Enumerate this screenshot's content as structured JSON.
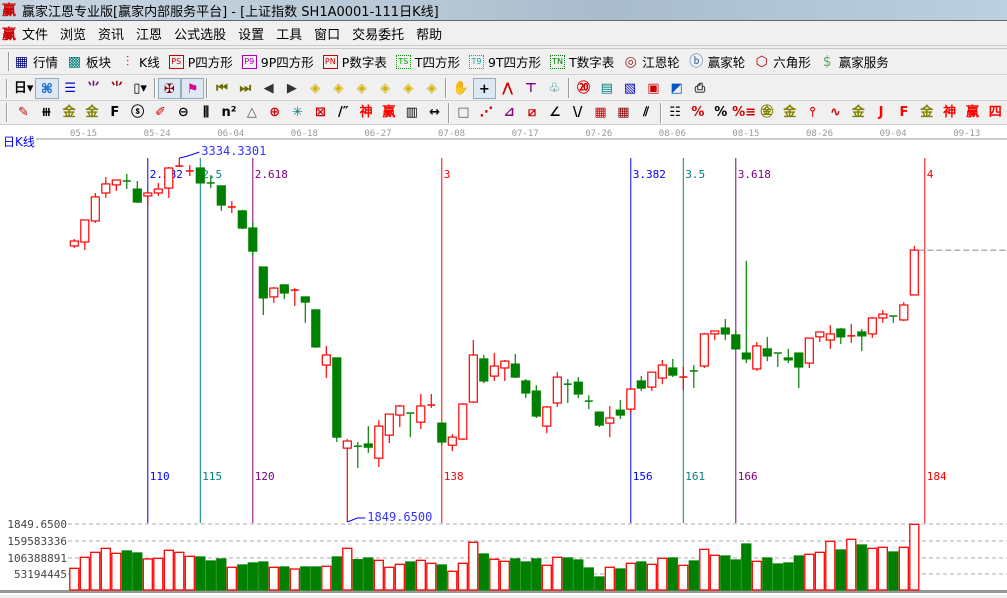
{
  "window": {
    "title": "赢家江恩专业版[赢家内部服务平台] - [上证指数  SH1A0001-111日K线]",
    "logo": "赢"
  },
  "menu": {
    "logo": "赢",
    "items": [
      "文件",
      "浏览",
      "资讯",
      "江恩",
      "公式选股",
      "设置",
      "工具",
      "窗口",
      "交易委托",
      "帮助"
    ]
  },
  "toolbar_main": [
    {
      "label": "行情",
      "icon": "quote-table-icon",
      "glyph": "▦",
      "color": "#000080"
    },
    {
      "label": "板块",
      "icon": "sector-blocks-icon",
      "glyph": "▩",
      "color": "#008080"
    },
    {
      "label": "K线",
      "icon": "candlestick-icon",
      "glyph": "⫶",
      "color": "#ff0000"
    },
    {
      "label": "P四方形",
      "icon": "ps-square-icon",
      "glyph": "PS",
      "color": "#cc0000"
    },
    {
      "label": "9P四方形",
      "icon": "p9-square-icon",
      "glyph": "P9",
      "color": "#aa00aa"
    },
    {
      "label": "P数字表",
      "icon": "pn-table-icon",
      "glyph": "PN",
      "color": "#cc0000"
    },
    {
      "label": "T四方形",
      "icon": "ts-square-icon",
      "glyph": "TS",
      "color": "#00a000"
    },
    {
      "label": "9T四方形",
      "icon": "t9-square-icon",
      "glyph": "T9",
      "color": "#00aaaa"
    },
    {
      "label": "T数字表",
      "icon": "tn-table-icon",
      "glyph": "TN",
      "color": "#008000"
    },
    {
      "label": "江恩轮",
      "icon": "gann-wheel-icon",
      "glyph": "◎",
      "color": "#8b1a1a"
    },
    {
      "label": "赢家轮",
      "icon": "big-wheel-icon",
      "glyph": "ⓑ",
      "color": "#336699"
    },
    {
      "label": "六角形",
      "icon": "hexagon-icon",
      "glyph": "⬡",
      "color": "#aa0000"
    },
    {
      "label": "赢家服务",
      "icon": "dollar-service-icon",
      "glyph": "$",
      "color": "#66aa66"
    }
  ],
  "toolbar_view": [
    {
      "name": "period-day-icon",
      "glyph": "日▾",
      "color": "#000"
    },
    {
      "name": "map-icon",
      "glyph": "⌘",
      "color": "#0055cc",
      "active": true
    },
    {
      "name": "notepad-icon",
      "glyph": "☰",
      "color": "#0000cc"
    },
    {
      "name": "step3-icon",
      "glyph": "⺌",
      "color": "#800080"
    },
    {
      "name": "step9-icon",
      "glyph": "⺌",
      "color": "#8b0000"
    },
    {
      "name": "candle-type-icon",
      "glyph": "▯▾",
      "color": "#000"
    },
    {
      "sep": true
    },
    {
      "name": "figure-icon",
      "glyph": "✠",
      "color": "#8b0000",
      "active": true
    },
    {
      "name": "flag-icon",
      "glyph": "⚑",
      "color": "#e0008c",
      "active": true
    },
    {
      "sep": true
    },
    {
      "name": "first-icon",
      "glyph": "⏮",
      "color": "#6b6b00"
    },
    {
      "name": "last-icon",
      "glyph": "⏭",
      "color": "#6b6b00"
    },
    {
      "name": "prev-icon",
      "glyph": "◀",
      "color": "#333"
    },
    {
      "name": "next-icon",
      "glyph": "▶",
      "color": "#333"
    },
    {
      "name": "move-left-icon",
      "glyph": "◈",
      "color": "#d4b000"
    },
    {
      "name": "move-right-icon",
      "glyph": "◈",
      "color": "#d4b000"
    },
    {
      "name": "expand-h-icon",
      "glyph": "◈",
      "color": "#d4b000"
    },
    {
      "name": "shrink-h-icon",
      "glyph": "◈",
      "color": "#d4b000"
    },
    {
      "name": "zoom-icon",
      "glyph": "◈",
      "color": "#d4b000"
    },
    {
      "name": "expand-v-icon",
      "glyph": "◈",
      "color": "#d4b000"
    },
    {
      "sep": true
    },
    {
      "name": "hand-icon",
      "glyph": "✋",
      "color": "#000"
    },
    {
      "name": "crosshair-icon",
      "glyph": "+",
      "color": "#000",
      "active": true
    },
    {
      "name": "point-line-icon",
      "glyph": "⋀",
      "color": "#c00"
    },
    {
      "name": "tee-icon",
      "glyph": "⊤",
      "color": "#800080"
    },
    {
      "name": "tree-icon",
      "glyph": "♧",
      "color": "#008080"
    },
    {
      "sep": true
    },
    {
      "name": "calendar-icon",
      "glyph": "⑳",
      "color": "#c00"
    },
    {
      "name": "calculator-icon",
      "glyph": "▤",
      "color": "#008080"
    },
    {
      "name": "document-icon",
      "glyph": "▧",
      "color": "#0000cc"
    },
    {
      "name": "save-icon",
      "glyph": "▣",
      "color": "#c00"
    },
    {
      "name": "network-icon",
      "glyph": "◩",
      "color": "#0055cc"
    },
    {
      "name": "print-icon",
      "glyph": "⎙",
      "color": "#333"
    }
  ],
  "toolbar_draw": [
    {
      "name": "pen-icon",
      "glyph": "✎",
      "color": "#c00"
    },
    {
      "name": "lines-icon",
      "glyph": "⧻",
      "color": "#000"
    },
    {
      "name": "gold-icon",
      "glyph": "金",
      "color": "#808000"
    },
    {
      "name": "gold2-icon",
      "glyph": "金",
      "color": "#808000"
    },
    {
      "name": "fib-icon",
      "glyph": "F",
      "color": "#000"
    },
    {
      "name": "spiral-icon",
      "glyph": "ⓢ",
      "color": "#000"
    },
    {
      "name": "ruler-pen-icon",
      "glyph": "✐",
      "color": "#c00"
    },
    {
      "name": "circle-ruler-icon",
      "glyph": "⊖",
      "color": "#000"
    },
    {
      "name": "bars-icon",
      "glyph": "⫼",
      "color": "#000"
    },
    {
      "name": "n-square-icon",
      "glyph": "n²",
      "color": "#000"
    },
    {
      "name": "triangle-icon",
      "glyph": "△",
      "color": "#555"
    },
    {
      "name": "target-icon",
      "glyph": "⊕",
      "color": "#c00"
    },
    {
      "name": "web-icon",
      "glyph": "✳",
      "color": "#008080"
    },
    {
      "name": "grid-target-icon",
      "glyph": "⊠",
      "color": "#c00"
    },
    {
      "name": "slash-icon",
      "glyph": "/″",
      "color": "#000"
    },
    {
      "name": "shen-icon",
      "glyph": "神",
      "color": "#f00"
    },
    {
      "name": "ying-icon",
      "glyph": "赢",
      "color": "#f00"
    },
    {
      "name": "scale-icon",
      "glyph": "▥",
      "color": "#000"
    },
    {
      "name": "width-icon",
      "glyph": "↔",
      "color": "#000"
    },
    {
      "sep": true
    },
    {
      "name": "box-icon",
      "glyph": "□",
      "color": "#555"
    },
    {
      "name": "fan-icon",
      "glyph": "⋰",
      "color": "#c00"
    },
    {
      "name": "gann-box-icon",
      "glyph": "⊿",
      "color": "#800080"
    },
    {
      "name": "gann-grid-icon",
      "glyph": "⧄",
      "color": "#c00"
    },
    {
      "name": "angle-icon",
      "glyph": "∠",
      "color": "#000"
    },
    {
      "name": "wave-icon",
      "glyph": "\\/",
      "color": "#000"
    },
    {
      "name": "grid-icon",
      "glyph": "▦",
      "color": "#c00"
    },
    {
      "name": "grid2-icon",
      "glyph": "▦",
      "color": "#800"
    },
    {
      "name": "parallel-icon",
      "glyph": "⫽",
      "color": "#000"
    },
    {
      "sep": true
    },
    {
      "name": "list-icon",
      "glyph": "☷",
      "color": "#000"
    },
    {
      "name": "percent-fan-icon",
      "glyph": "%",
      "color": "#c00"
    },
    {
      "name": "percent-icon",
      "glyph": "%",
      "color": "#000"
    },
    {
      "name": "percent-lines-icon",
      "glyph": "%≡",
      "color": "#c00"
    },
    {
      "name": "gold-circle-icon",
      "glyph": "㊎",
      "color": "#808000"
    },
    {
      "name": "gold-lines-icon",
      "glyph": "金",
      "color": "#808000"
    },
    {
      "name": "pen-lines-icon",
      "glyph": "⫯",
      "color": "#c00"
    },
    {
      "name": "sine-icon",
      "glyph": "∿",
      "color": "#c00"
    },
    {
      "name": "gold-red-icon",
      "glyph": "金",
      "color": "#808000"
    },
    {
      "name": "j-fan-icon",
      "glyph": "J",
      "color": "#f00"
    },
    {
      "name": "f-fan-icon",
      "glyph": "F",
      "color": "#f00"
    },
    {
      "name": "gold-fan-icon",
      "glyph": "金",
      "color": "#808000"
    },
    {
      "name": "shen-fan-icon",
      "glyph": "神",
      "color": "#f00"
    },
    {
      "name": "ying-fan-icon",
      "glyph": "赢",
      "color": "#f00"
    },
    {
      "name": "four-fan-icon",
      "glyph": "四",
      "color": "#f00"
    }
  ],
  "chart": {
    "period_label": "日K线",
    "date_ticks": [
      "05-15",
      "05-24",
      "06-04",
      "06-18",
      "06-27",
      "07-08",
      "07-17",
      "07-26",
      "08-06",
      "08-15",
      "08-26",
      "09-04",
      "09-13"
    ],
    "high_label": "3334.3301",
    "low_label": "1849.6500",
    "axis_low_label": "1849.6500",
    "colors": {
      "up": "#ff0000",
      "down": "#008000",
      "background": "#ffffff"
    },
    "time_lines": [
      {
        "bar": "110",
        "ratio": "2.382",
        "color": "#0000ff"
      },
      {
        "bar": "115",
        "ratio": "2.5",
        "color": "#008080"
      },
      {
        "bar": "120",
        "ratio": "2.618",
        "color": "#800080"
      },
      {
        "bar": "138",
        "ratio": "3",
        "color": "#ff0000"
      },
      {
        "bar": "156",
        "ratio": "3.382",
        "color": "#0000ff"
      },
      {
        "bar": "161",
        "ratio": "3.5",
        "color": "#008080"
      },
      {
        "bar": "166",
        "ratio": "3.618",
        "color": "#800080"
      },
      {
        "bar": "184",
        "ratio": "4",
        "color": "#ff0000"
      }
    ],
    "volume_axis_labels": [
      "159583336",
      "106388891",
      "53194445"
    ]
  },
  "chart_data": {
    "type": "candlestick",
    "price_range": [
      1849.65,
      3334.3301
    ],
    "ohlc": [
      [
        2976,
        3004,
        2968,
        2996
      ],
      [
        2992,
        3082,
        2959,
        3082
      ],
      [
        3078,
        3192,
        3070,
        3176
      ],
      [
        3192,
        3257,
        3172,
        3229
      ],
      [
        3225,
        3245,
        3200,
        3245
      ],
      [
        3241,
        3270,
        3208,
        3240
      ],
      [
        3208,
        3241,
        3151,
        3155
      ],
      [
        3180,
        3200,
        3139,
        3192
      ],
      [
        3192,
        3233,
        3180,
        3208
      ],
      [
        3212,
        3298,
        3172,
        3294
      ],
      [
        3302,
        3334.33,
        3298,
        3302
      ],
      [
        3282,
        3306,
        3261,
        3282
      ],
      [
        3294,
        3294,
        3233,
        3233
      ],
      [
        3233,
        3265,
        3212,
        3232
      ],
      [
        3221,
        3221,
        3119,
        3143
      ],
      [
        3135,
        3159,
        3110,
        3135
      ],
      [
        3119,
        3123,
        3045,
        3049
      ],
      [
        3049,
        3074,
        2935,
        2955
      ],
      [
        2890,
        2890,
        2694,
        2764
      ],
      [
        2768,
        2808,
        2743,
        2804
      ],
      [
        2817,
        2821,
        2759,
        2784
      ],
      [
        2796,
        2804,
        2731,
        2796
      ],
      [
        2768,
        2768,
        2662,
        2747
      ],
      [
        2715,
        2715,
        2560,
        2564
      ],
      [
        2490,
        2568,
        2437,
        2531
      ],
      [
        2519,
        2519,
        2176,
        2196
      ],
      [
        2151,
        2188,
        1849.65,
        2180
      ],
      [
        2159,
        2176,
        2070,
        2158
      ],
      [
        2168,
        2241,
        2131,
        2155
      ],
      [
        2110,
        2265,
        2074,
        2241
      ],
      [
        2204,
        2290,
        2172,
        2290
      ],
      [
        2286,
        2327,
        2237,
        2323
      ],
      [
        2294,
        2294,
        2196,
        2290
      ],
      [
        2257,
        2372,
        2229,
        2323
      ],
      [
        2327,
        2372,
        2315,
        2327
      ],
      [
        2253,
        2253,
        2163,
        2176
      ],
      [
        2163,
        2208,
        2139,
        2196
      ],
      [
        2188,
        2335,
        2184,
        2331
      ],
      [
        2339,
        2592,
        2335,
        2531
      ],
      [
        2515,
        2531,
        2416,
        2425
      ],
      [
        2445,
        2539,
        2425,
        2486
      ],
      [
        2478,
        2511,
        2425,
        2506
      ],
      [
        2494,
        2535,
        2437,
        2441
      ],
      [
        2425,
        2433,
        2355,
        2376
      ],
      [
        2384,
        2408,
        2274,
        2282
      ],
      [
        2241,
        2323,
        2212,
        2319
      ],
      [
        2335,
        2461,
        2319,
        2441
      ],
      [
        2412,
        2433,
        2335,
        2411
      ],
      [
        2420,
        2441,
        2355,
        2372
      ],
      [
        2343,
        2367,
        2310,
        2342
      ],
      [
        2298,
        2298,
        2237,
        2245
      ],
      [
        2253,
        2323,
        2196,
        2274
      ],
      [
        2306,
        2347,
        2270,
        2286
      ],
      [
        2310,
        2396,
        2294,
        2392
      ],
      [
        2425,
        2445,
        2384,
        2396
      ],
      [
        2400,
        2461,
        2384,
        2461
      ],
      [
        2437,
        2511,
        2412,
        2490
      ],
      [
        2478,
        2515,
        2441,
        2449
      ],
      [
        2441,
        2482,
        2388,
        2441
      ],
      [
        2466,
        2490,
        2396,
        2465
      ],
      [
        2486,
        2621,
        2478,
        2617
      ],
      [
        2617,
        2629,
        2592,
        2629
      ],
      [
        2641,
        2678,
        2592,
        2617
      ],
      [
        2613,
        2633,
        2552,
        2556
      ],
      [
        2539,
        2915,
        2498,
        2515
      ],
      [
        2474,
        2584,
        2466,
        2568
      ],
      [
        2556,
        2605,
        2506,
        2527
      ],
      [
        2539,
        2539,
        2482,
        2535
      ],
      [
        2519,
        2556,
        2498,
        2511
      ],
      [
        2539,
        2539,
        2396,
        2482
      ],
      [
        2498,
        2600,
        2478,
        2600
      ],
      [
        2605,
        2625,
        2584,
        2625
      ],
      [
        2592,
        2653,
        2556,
        2617
      ],
      [
        2637,
        2641,
        2576,
        2605
      ],
      [
        2609,
        2658,
        2580,
        2609
      ],
      [
        2625,
        2637,
        2547,
        2609
      ],
      [
        2617,
        2686,
        2600,
        2682
      ],
      [
        2682,
        2715,
        2662,
        2698
      ],
      [
        2690,
        2690,
        2662,
        2686
      ],
      [
        2674,
        2747,
        2670,
        2735
      ],
      [
        2776,
        2976,
        2776,
        2959
      ]
    ],
    "volume_millions": [
      72.1,
      108.7,
      125.3,
      138.6,
      122.0,
      129.7,
      123.0,
      103.1,
      105.4,
      132.0,
      125.3,
      112.0,
      109.7,
      96.4,
      103.1,
      75.5,
      83.1,
      89.8,
      93.1,
      75.5,
      76.5,
      69.8,
      76.5,
      76.5,
      78.8,
      109.7,
      138.6,
      100.7,
      106.4,
      98.7,
      75.5,
      85.4,
      93.1,
      98.7,
      88.8,
      83.1,
      62.2,
      88.8,
      158.6,
      119.7,
      102.1,
      95.4,
      103.1,
      93.1,
      103.1,
      82.1,
      108.7,
      106.4,
      99.7,
      73.1,
      43.2,
      75.5,
      69.8,
      88.8,
      93.1,
      85.4,
      105.4,
      106.4,
      82.1,
      96.4,
      135.3,
      115.4,
      113.0,
      99.7,
      152.9,
      95.4,
      106.4,
      86.4,
      89.8,
      113.0,
      118.7,
      125.3,
      161.9,
      133.0,
      168.6,
      149.6,
      138.6,
      142.0,
      126.3,
      142.0,
      218.4
    ]
  }
}
